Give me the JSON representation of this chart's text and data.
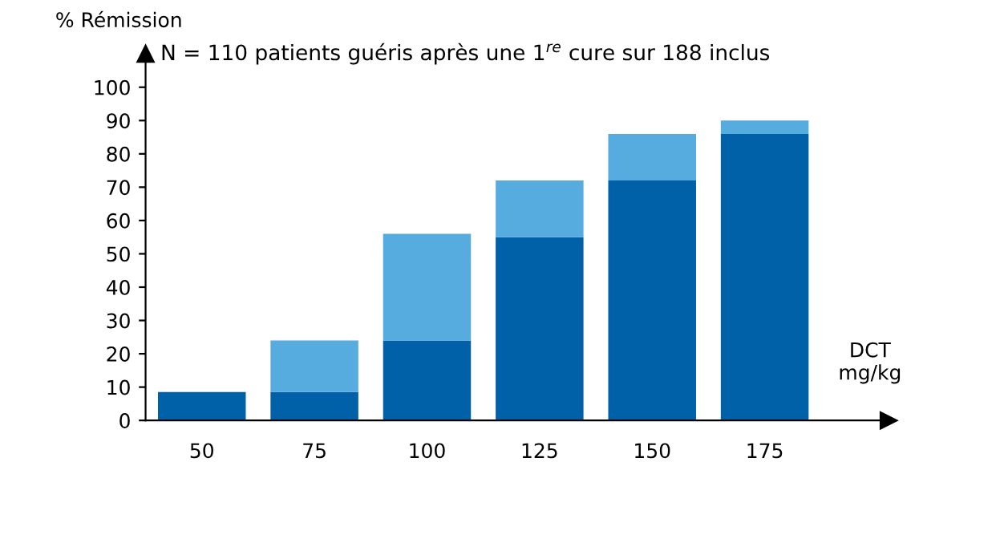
{
  "chart_data": {
    "type": "bar",
    "stacked": true,
    "title": "N = 110 patients guéris après une 1$^{re}$ cure sur 188 inclus",
    "ylabel": "% Rémission",
    "xlabel": "DCT\nmg/kg",
    "categories": [
      "50",
      "75",
      "100",
      "125",
      "150",
      "175"
    ],
    "series": [
      {
        "color": "#0060a8",
        "values": [
          8.5,
          8.5,
          24,
          55,
          72,
          86
        ]
      },
      {
        "color": "#56abdf",
        "values": [
          null,
          15.5,
          32,
          17,
          14,
          4
        ]
      }
    ],
    "ylim": [
      0,
      110
    ],
    "yticks": [
      0,
      10,
      20,
      30,
      40,
      50,
      60,
      70,
      80,
      90,
      100
    ],
    "grid": false,
    "legend": false
  }
}
